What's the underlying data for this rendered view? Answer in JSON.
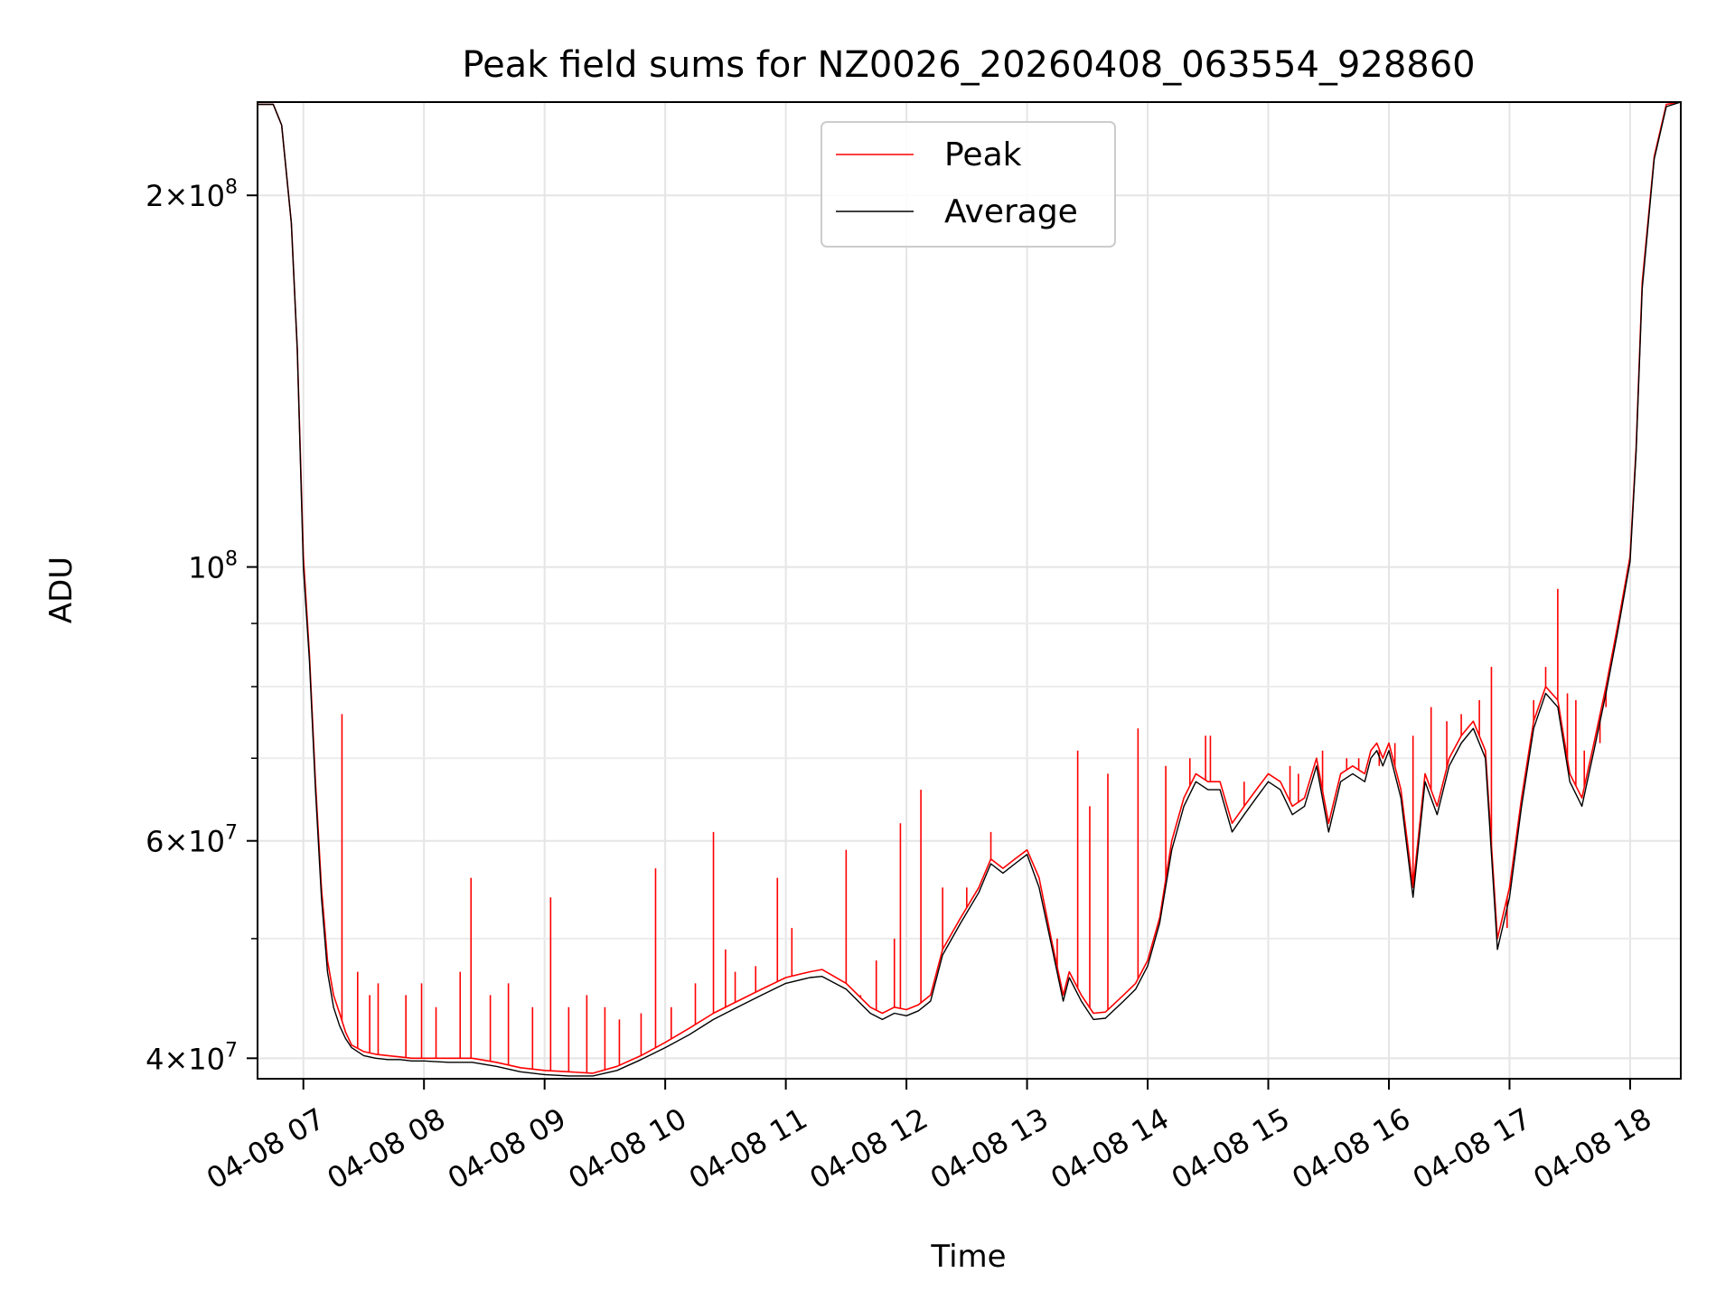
{
  "chart_data": {
    "type": "line",
    "title": "Peak field sums for NZ0026_20260408_063554_928860",
    "xlabel": "Time",
    "ylabel": "ADU",
    "yscale": "log",
    "xlim": [
      6.62,
      18.42
    ],
    "ylim": [
      38500000,
      238000000
    ],
    "x_units": "hours on 04-08",
    "x_ticks": [
      7,
      8,
      9,
      10,
      11,
      12,
      13,
      14,
      15,
      16,
      17,
      18
    ],
    "x_tick_labels": [
      "04-08 07",
      "04-08 08",
      "04-08 09",
      "04-08 10",
      "04-08 11",
      "04-08 12",
      "04-08 13",
      "04-08 14",
      "04-08 15",
      "04-08 16",
      "04-08 17",
      "04-08 18"
    ],
    "y_major_ticks": [
      {
        "value": 40000000,
        "mant": "4",
        "exp": "7"
      },
      {
        "value": 60000000,
        "mant": "6",
        "exp": "7"
      },
      {
        "value": 100000000,
        "mant": "",
        "exp": "8"
      },
      {
        "value": 200000000,
        "mant": "2",
        "exp": "8"
      }
    ],
    "y_minor_ticks": [
      50000000,
      70000000,
      80000000,
      90000000
    ],
    "grid": true,
    "legend_position": "top-center",
    "series": [
      {
        "name": "Peak",
        "color": "#ff0000",
        "x": [
          6.62,
          6.75,
          6.82,
          6.9,
          6.95,
          7.0,
          7.05,
          7.1,
          7.15,
          7.2,
          7.25,
          7.3,
          7.35,
          7.4,
          7.5,
          7.6,
          7.7,
          7.8,
          7.9,
          8.0,
          8.2,
          8.4,
          8.6,
          8.8,
          9.0,
          9.2,
          9.4,
          9.6,
          9.8,
          10.0,
          10.2,
          10.4,
          10.6,
          10.8,
          11.0,
          11.2,
          11.3,
          11.5,
          11.7,
          11.8,
          11.9,
          12.0,
          12.1,
          12.2,
          12.3,
          12.45,
          12.6,
          12.65,
          12.7,
          12.8,
          12.9,
          13.0,
          13.1,
          13.2,
          13.3,
          13.35,
          13.45,
          13.55,
          13.65,
          13.8,
          13.9,
          14.0,
          14.1,
          14.2,
          14.3,
          14.4,
          14.5,
          14.6,
          14.7,
          14.8,
          14.9,
          15.0,
          15.1,
          15.2,
          15.3,
          15.4,
          15.5,
          15.6,
          15.7,
          15.8,
          15.85,
          15.9,
          15.95,
          16.0,
          16.1,
          16.2,
          16.3,
          16.4,
          16.5,
          16.6,
          16.7,
          16.8,
          16.9,
          17.0,
          17.1,
          17.2,
          17.3,
          17.4,
          17.5,
          17.6,
          17.7,
          17.8,
          17.9,
          18.0,
          18.05,
          18.1,
          18.2,
          18.3,
          18.42
        ],
        "values": [
          237000000,
          237000000,
          228000000,
          190000000,
          150000000,
          102000000,
          85000000,
          67000000,
          55000000,
          48000000,
          45000000,
          43500000,
          42000000,
          41000000,
          40500000,
          40300000,
          40200000,
          40100000,
          40000000,
          40000000,
          40000000,
          40000000,
          39700000,
          39300000,
          39100000,
          39000000,
          38900000,
          39400000,
          40200000,
          41200000,
          42300000,
          43500000,
          44500000,
          45500000,
          46500000,
          47000000,
          47200000,
          46000000,
          44000000,
          43500000,
          44000000,
          43800000,
          44200000,
          45000000,
          49000000,
          52000000,
          55000000,
          56500000,
          58000000,
          57000000,
          58000000,
          59000000,
          56000000,
          50000000,
          45000000,
          47000000,
          45000000,
          43500000,
          43600000,
          45000000,
          46000000,
          48000000,
          52000000,
          60000000,
          65000000,
          68000000,
          67000000,
          67000000,
          62000000,
          64000000,
          66000000,
          68000000,
          67000000,
          64000000,
          65000000,
          70000000,
          62000000,
          68000000,
          69000000,
          68000000,
          71000000,
          72000000,
          70000000,
          72000000,
          66000000,
          55000000,
          68000000,
          64000000,
          70000000,
          73000000,
          75000000,
          71000000,
          50000000,
          55000000,
          65000000,
          75000000,
          80000000,
          78000000,
          68000000,
          65000000,
          72000000,
          80000000,
          90000000,
          102000000,
          125000000,
          170000000,
          215000000,
          237000000,
          238000000
        ],
        "spikes": [
          [
            7.32,
            76000000
          ],
          [
            7.45,
            47000000
          ],
          [
            7.55,
            45000000
          ],
          [
            7.62,
            46000000
          ],
          [
            7.85,
            45000000
          ],
          [
            7.98,
            46000000
          ],
          [
            8.1,
            44000000
          ],
          [
            8.3,
            47000000
          ],
          [
            8.39,
            56000000
          ],
          [
            8.55,
            45000000
          ],
          [
            8.7,
            46000000
          ],
          [
            8.9,
            44000000
          ],
          [
            9.05,
            54000000
          ],
          [
            9.2,
            44000000
          ],
          [
            9.35,
            45000000
          ],
          [
            9.5,
            44000000
          ],
          [
            9.62,
            43000000
          ],
          [
            9.8,
            43500000
          ],
          [
            9.92,
            57000000
          ],
          [
            10.05,
            44000000
          ],
          [
            10.25,
            46000000
          ],
          [
            10.4,
            61000000
          ],
          [
            10.5,
            49000000
          ],
          [
            10.58,
            47000000
          ],
          [
            10.75,
            47500000
          ],
          [
            10.93,
            56000000
          ],
          [
            11.05,
            51000000
          ],
          [
            11.5,
            59000000
          ],
          [
            11.62,
            45000000
          ],
          [
            11.75,
            48000000
          ],
          [
            11.9,
            50000000
          ],
          [
            11.95,
            62000000
          ],
          [
            12.12,
            66000000
          ],
          [
            12.3,
            55000000
          ],
          [
            12.5,
            55000000
          ],
          [
            12.7,
            61000000
          ],
          [
            13.25,
            50000000
          ],
          [
            13.42,
            71000000
          ],
          [
            13.52,
            64000000
          ],
          [
            13.67,
            68000000
          ],
          [
            13.92,
            74000000
          ],
          [
            14.15,
            69000000
          ],
          [
            14.35,
            70000000
          ],
          [
            14.48,
            73000000
          ],
          [
            14.52,
            73000000
          ],
          [
            14.8,
            67000000
          ],
          [
            15.0,
            68000000
          ],
          [
            15.18,
            69000000
          ],
          [
            15.25,
            68000000
          ],
          [
            15.45,
            71000000
          ],
          [
            15.65,
            70000000
          ],
          [
            15.75,
            70000000
          ],
          [
            15.92,
            69000000
          ],
          [
            16.05,
            72000000
          ],
          [
            16.2,
            73000000
          ],
          [
            16.35,
            77000000
          ],
          [
            16.48,
            75000000
          ],
          [
            16.6,
            76000000
          ],
          [
            16.75,
            78000000
          ],
          [
            16.85,
            83000000
          ],
          [
            16.98,
            51000000
          ],
          [
            17.2,
            78000000
          ],
          [
            17.3,
            83000000
          ],
          [
            17.4,
            96000000
          ],
          [
            17.48,
            79000000
          ],
          [
            17.55,
            78000000
          ],
          [
            17.62,
            71000000
          ],
          [
            17.75,
            72000000
          ],
          [
            17.8,
            77000000
          ],
          [
            18.1,
            170000000
          ]
        ]
      },
      {
        "name": "Average",
        "color": "#000000",
        "x": [
          6.62,
          6.75,
          6.82,
          6.9,
          6.95,
          7.0,
          7.05,
          7.1,
          7.15,
          7.2,
          7.25,
          7.3,
          7.35,
          7.4,
          7.5,
          7.6,
          7.7,
          7.8,
          7.9,
          8.0,
          8.2,
          8.4,
          8.6,
          8.8,
          9.0,
          9.2,
          9.4,
          9.6,
          9.8,
          10.0,
          10.2,
          10.4,
          10.6,
          10.8,
          11.0,
          11.2,
          11.3,
          11.5,
          11.7,
          11.8,
          11.9,
          12.0,
          12.1,
          12.2,
          12.3,
          12.45,
          12.6,
          12.65,
          12.7,
          12.8,
          12.9,
          13.0,
          13.1,
          13.2,
          13.3,
          13.35,
          13.45,
          13.55,
          13.65,
          13.8,
          13.9,
          14.0,
          14.1,
          14.2,
          14.3,
          14.4,
          14.5,
          14.6,
          14.7,
          14.8,
          14.9,
          15.0,
          15.1,
          15.2,
          15.3,
          15.4,
          15.5,
          15.6,
          15.7,
          15.8,
          15.85,
          15.9,
          15.95,
          16.0,
          16.1,
          16.2,
          16.3,
          16.4,
          16.5,
          16.6,
          16.7,
          16.8,
          16.9,
          17.0,
          17.1,
          17.2,
          17.3,
          17.4,
          17.5,
          17.6,
          17.7,
          17.8,
          17.9,
          18.0,
          18.05,
          18.1,
          18.2,
          18.3,
          18.42
        ],
        "values": [
          237000000,
          237000000,
          228000000,
          190000000,
          150000000,
          100000000,
          84000000,
          66000000,
          54000000,
          47000000,
          44000000,
          42500000,
          41500000,
          40800000,
          40200000,
          40000000,
          39900000,
          39900000,
          39800000,
          39800000,
          39700000,
          39700000,
          39400000,
          39000000,
          38800000,
          38700000,
          38700000,
          39100000,
          39900000,
          40800000,
          41800000,
          43000000,
          44000000,
          45000000,
          46000000,
          46500000,
          46600000,
          45500000,
          43500000,
          43000000,
          43500000,
          43300000,
          43700000,
          44500000,
          48500000,
          51500000,
          54500000,
          56000000,
          57500000,
          56500000,
          57500000,
          58500000,
          55000000,
          49500000,
          44500000,
          46500000,
          44500000,
          43000000,
          43100000,
          44500000,
          45500000,
          47500000,
          51500000,
          59000000,
          64000000,
          67000000,
          66000000,
          66000000,
          61000000,
          63000000,
          65000000,
          67000000,
          66000000,
          63000000,
          64000000,
          69000000,
          61000000,
          67000000,
          68000000,
          67000000,
          70000000,
          71000000,
          69000000,
          71000000,
          65000000,
          54000000,
          67000000,
          63000000,
          69000000,
          72000000,
          74000000,
          70000000,
          49000000,
          54000000,
          64000000,
          74000000,
          79000000,
          77000000,
          67000000,
          64000000,
          71000000,
          79000000,
          89000000,
          101000000,
          124000000,
          168000000,
          214000000,
          236000000,
          238000000
        ]
      }
    ]
  }
}
